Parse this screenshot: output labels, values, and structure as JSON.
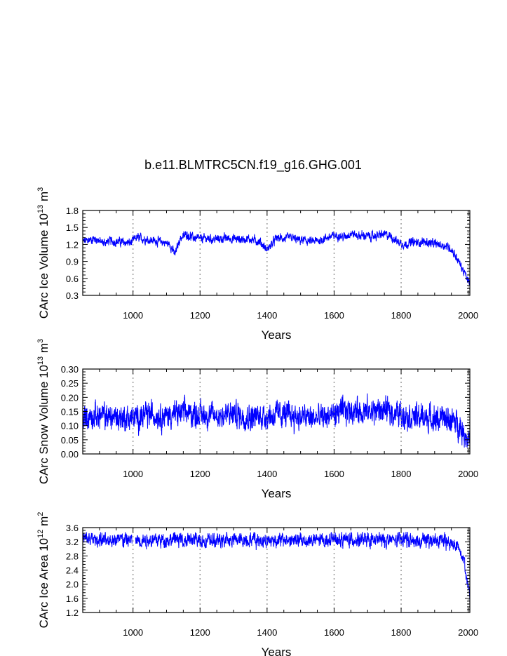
{
  "title": "b.e11.BLMTRC5CN.f19_g16.GHG.001",
  "chart_data": [
    {
      "type": "line",
      "ylabel": {
        "main": "CArc Ice Volume 10",
        "exp": "13",
        "unit": " m",
        "unit_exp": "3"
      },
      "xlabel": "Years",
      "xlim": [
        850,
        2005
      ],
      "ylim": [
        0.3,
        1.8
      ],
      "xticks": [
        1000,
        1200,
        1400,
        1600,
        1800,
        2000
      ],
      "yticks": [
        "0.3",
        "0.6",
        "0.9",
        "1.2",
        "1.5",
        "1.8"
      ],
      "grid_x": true,
      "series": [
        {
          "color": "#0000ff",
          "x": [
            850,
            870,
            890,
            910,
            930,
            950,
            970,
            990,
            1000,
            1010,
            1030,
            1050,
            1070,
            1090,
            1110,
            1125,
            1140,
            1160,
            1180,
            1200,
            1220,
            1240,
            1260,
            1280,
            1300,
            1320,
            1340,
            1360,
            1380,
            1400,
            1410,
            1430,
            1450,
            1470,
            1490,
            1510,
            1530,
            1550,
            1570,
            1590,
            1610,
            1630,
            1650,
            1670,
            1690,
            1710,
            1730,
            1750,
            1770,
            1790,
            1810,
            1830,
            1850,
            1870,
            1890,
            1910,
            1930,
            1950,
            1960,
            1970,
            1980,
            1990,
            2000,
            2005
          ],
          "y": [
            1.25,
            1.28,
            1.3,
            1.22,
            1.26,
            1.25,
            1.24,
            1.22,
            1.27,
            1.32,
            1.3,
            1.28,
            1.26,
            1.24,
            1.2,
            1.02,
            1.3,
            1.38,
            1.32,
            1.3,
            1.31,
            1.29,
            1.3,
            1.31,
            1.3,
            1.29,
            1.3,
            1.28,
            1.24,
            1.1,
            1.18,
            1.32,
            1.3,
            1.32,
            1.28,
            1.27,
            1.25,
            1.26,
            1.3,
            1.34,
            1.36,
            1.33,
            1.4,
            1.35,
            1.36,
            1.34,
            1.36,
            1.38,
            1.34,
            1.25,
            1.2,
            1.24,
            1.23,
            1.25,
            1.22,
            1.2,
            1.18,
            1.12,
            1.02,
            0.92,
            0.8,
            0.68,
            0.55,
            0.52
          ],
          "noise": 0.085
        }
      ]
    },
    {
      "type": "line",
      "ylabel": {
        "main": "CArc Snow Volume 10",
        "exp": "13",
        "unit": " m",
        "unit_exp": "3"
      },
      "xlabel": "Years",
      "xlim": [
        850,
        2005
      ],
      "ylim": [
        0.0,
        0.3
      ],
      "xticks": [
        1000,
        1200,
        1400,
        1600,
        1800,
        2000
      ],
      "yticks": [
        "0.00",
        "0.05",
        "0.10",
        "0.15",
        "0.20",
        "0.25",
        "0.30"
      ],
      "grid_x": true,
      "series": [
        {
          "color": "#0000ff",
          "x": [
            850,
            900,
            950,
            1000,
            1050,
            1100,
            1150,
            1200,
            1250,
            1300,
            1350,
            1400,
            1450,
            1500,
            1550,
            1600,
            1650,
            1700,
            1750,
            1800,
            1850,
            1900,
            1950,
            1975,
            1990,
            2005
          ],
          "y": [
            0.13,
            0.135,
            0.13,
            0.125,
            0.14,
            0.135,
            0.145,
            0.14,
            0.135,
            0.14,
            0.13,
            0.135,
            0.14,
            0.13,
            0.125,
            0.14,
            0.155,
            0.15,
            0.155,
            0.14,
            0.13,
            0.125,
            0.12,
            0.1,
            0.07,
            0.05
          ],
          "noise": 0.05
        }
      ]
    },
    {
      "type": "line",
      "ylabel": {
        "main": "CArc Ice Area 10",
        "exp": "12",
        "unit": " m",
        "unit_exp": "2"
      },
      "xlabel": "Years",
      "xlim": [
        850,
        2005
      ],
      "ylim": [
        1.2,
        3.6
      ],
      "xticks": [
        1000,
        1200,
        1400,
        1600,
        1800,
        2000
      ],
      "yticks": [
        "1.2",
        "1.6",
        "2.0",
        "2.4",
        "2.8",
        "3.2",
        "3.6"
      ],
      "grid_x": true,
      "gap": [
        998,
        1007
      ],
      "series": [
        {
          "color": "#0000ff",
          "x": [
            850,
            900,
            950,
            1000,
            1050,
            1100,
            1150,
            1200,
            1250,
            1300,
            1350,
            1400,
            1450,
            1500,
            1550,
            1600,
            1650,
            1700,
            1750,
            1800,
            1850,
            1900,
            1930,
            1950,
            1970,
            1985,
            1995,
            2005
          ],
          "y": [
            3.28,
            3.26,
            3.25,
            3.24,
            3.26,
            3.25,
            3.26,
            3.24,
            3.22,
            3.25,
            3.26,
            3.24,
            3.25,
            3.23,
            3.24,
            3.25,
            3.26,
            3.25,
            3.24,
            3.26,
            3.25,
            3.23,
            3.2,
            3.15,
            3.05,
            2.8,
            2.3,
            1.6
          ],
          "noise": 0.22,
          "cap": 3.48
        }
      ]
    }
  ]
}
